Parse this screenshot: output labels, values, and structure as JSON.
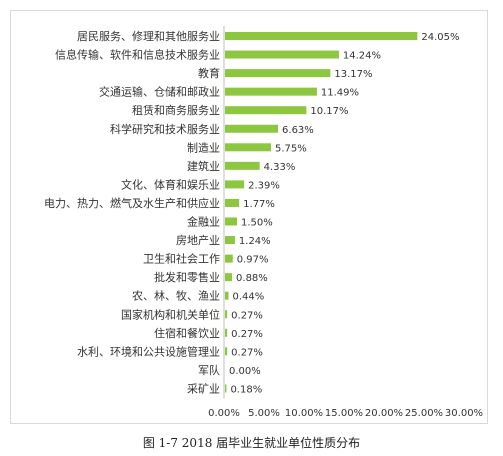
{
  "caption": "图 1-7   2018 届毕业生就业单位性质分布",
  "colors": {
    "bar": "#8dc63f",
    "text": "#333333",
    "axis": "#bfbfbf"
  },
  "chart_data": {
    "type": "bar",
    "orientation": "horizontal",
    "categories": [
      "居民服务、修理和其他服务业",
      "信息传输、软件和信息技术服务业",
      "教育",
      "交通运输、仓储和邮政业",
      "租赁和商务服务业",
      "科学研究和技术服务业",
      "制造业",
      "建筑业",
      "文化、体育和娱乐业",
      "电力、热力、燃气及水生产和供应业",
      "金融业",
      "房地产业",
      "卫生和社会工作",
      "批发和零售业",
      "农、林、牧、渔业",
      "国家机构和机关单位",
      "住宿和餐饮业",
      "水利、环境和公共设施管理业",
      "军队",
      "采矿业"
    ],
    "values": [
      24.05,
      14.24,
      13.17,
      11.49,
      10.17,
      6.63,
      5.75,
      4.33,
      2.39,
      1.77,
      1.5,
      1.24,
      0.97,
      0.88,
      0.44,
      0.27,
      0.27,
      0.27,
      0.0,
      0.18
    ],
    "value_labels": [
      "24.05%",
      "14.24%",
      "13.17%",
      "11.49%",
      "10.17%",
      "6.63%",
      "5.75%",
      "4.33%",
      "2.39%",
      "1.77%",
      "1.50%",
      "1.24%",
      "0.97%",
      "0.88%",
      "0.44%",
      "0.27%",
      "0.27%",
      "0.27%",
      "0.00%",
      "0.18%"
    ],
    "xlim": [
      0,
      30
    ],
    "xticks": [
      0,
      5,
      10,
      15,
      20,
      25,
      30
    ],
    "xtick_labels": [
      "0.00%",
      "5.00%",
      "10.00%",
      "15.00%",
      "20.00%",
      "25.00%",
      "30.00%"
    ],
    "grid": false,
    "legend": "none"
  }
}
